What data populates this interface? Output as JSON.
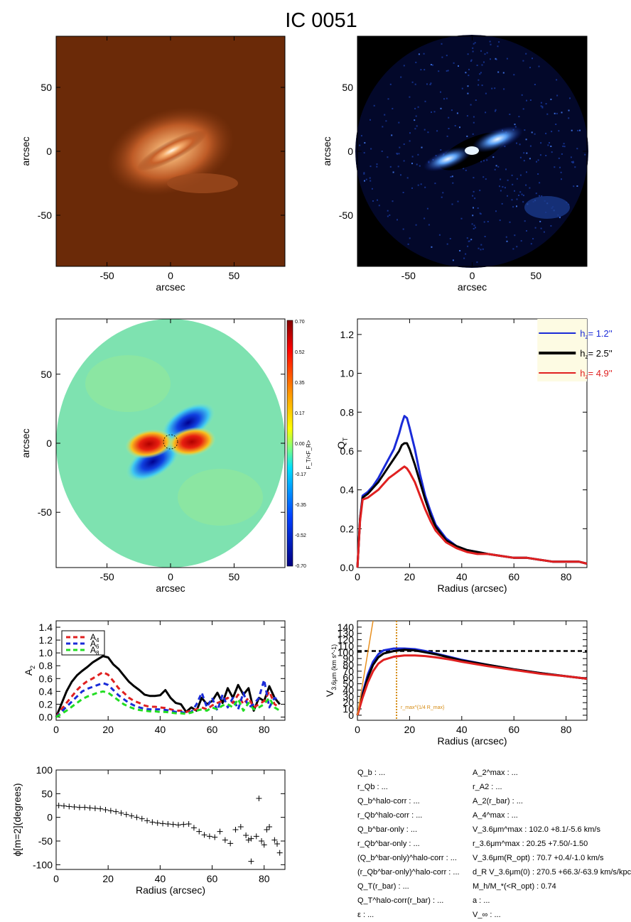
{
  "title": "IC 0051",
  "colorbar_label": "F_T/<F_R>",
  "panels": {
    "image1": {
      "xlabel": "arcsec",
      "ylabel": "arcsec",
      "xticks": [
        -50,
        0,
        50
      ],
      "yticks": [
        50,
        0,
        -50
      ]
    },
    "image2": {
      "xlabel": "arcsec",
      "ylabel": "arcsec",
      "xticks": [
        -50,
        0,
        50
      ],
      "yticks": [
        50,
        0,
        -50
      ]
    },
    "force_map": {
      "xlabel": "arcsec",
      "ylabel": "arcsec",
      "xticks": [
        -50,
        0,
        50
      ],
      "yticks": [
        50,
        0,
        -50
      ],
      "colorbar_ticks": [
        "0.70",
        "0.52",
        "0.35",
        "0.17",
        "0.00",
        "-0.17",
        "-0.35",
        "-0.52",
        "-0.70"
      ]
    }
  },
  "chart_data": [
    {
      "id": "qt",
      "type": "line",
      "xlabel": "Radius (arcsec)",
      "ylabel": "Q_T",
      "xlim": [
        0,
        88
      ],
      "ylim": [
        0,
        1.28
      ],
      "xticks": [
        0,
        20,
        40,
        60,
        80
      ],
      "yticks": [
        0.0,
        0.2,
        0.4,
        0.6,
        0.8,
        1.0,
        1.2
      ],
      "legend": {
        "position": "top-right",
        "background": "#fdfbe3",
        "entries": [
          {
            "label": "h_z=  1.2''",
            "color": "#1a2bd8"
          },
          {
            "label": "h_z=  2.5''",
            "color": "#000000"
          },
          {
            "label": "h_z=  4.9''",
            "color": "#e02020"
          }
        ]
      },
      "series": [
        {
          "name": "h_z= 1.2''",
          "color": "#1a2bd8",
          "x": [
            0,
            1,
            2,
            4,
            6,
            8,
            10,
            12,
            14,
            16,
            17,
            18,
            19,
            20,
            22,
            24,
            26,
            28,
            30,
            34,
            38,
            42,
            46,
            50,
            55,
            60,
            65,
            70,
            75,
            80,
            85,
            88
          ],
          "y": [
            0,
            0.25,
            0.37,
            0.39,
            0.42,
            0.46,
            0.51,
            0.56,
            0.61,
            0.69,
            0.74,
            0.78,
            0.77,
            0.72,
            0.61,
            0.48,
            0.37,
            0.29,
            0.22,
            0.15,
            0.11,
            0.09,
            0.08,
            0.07,
            0.06,
            0.05,
            0.05,
            0.04,
            0.03,
            0.03,
            0.03,
            0.02
          ]
        },
        {
          "name": "h_z= 2.5''",
          "color": "#000000",
          "x": [
            0,
            1,
            2,
            4,
            6,
            8,
            10,
            12,
            14,
            16,
            17,
            18,
            19,
            20,
            22,
            24,
            26,
            28,
            30,
            34,
            38,
            42,
            46,
            50,
            55,
            60,
            65,
            70,
            75,
            80,
            85,
            88
          ],
          "y": [
            0,
            0.25,
            0.36,
            0.38,
            0.41,
            0.44,
            0.48,
            0.52,
            0.56,
            0.6,
            0.63,
            0.64,
            0.64,
            0.61,
            0.53,
            0.44,
            0.35,
            0.27,
            0.21,
            0.14,
            0.11,
            0.09,
            0.08,
            0.07,
            0.06,
            0.05,
            0.05,
            0.04,
            0.03,
            0.03,
            0.03,
            0.02
          ]
        },
        {
          "name": "h_z= 4.9''",
          "color": "#e02020",
          "x": [
            0,
            1,
            2,
            4,
            6,
            8,
            10,
            12,
            14,
            16,
            17,
            18,
            19,
            20,
            22,
            24,
            26,
            28,
            30,
            34,
            38,
            42,
            46,
            50,
            55,
            60,
            65,
            70,
            75,
            80,
            85,
            88
          ],
          "y": [
            0,
            0.24,
            0.35,
            0.36,
            0.38,
            0.4,
            0.43,
            0.46,
            0.48,
            0.5,
            0.51,
            0.52,
            0.51,
            0.49,
            0.44,
            0.37,
            0.3,
            0.24,
            0.19,
            0.13,
            0.1,
            0.08,
            0.07,
            0.07,
            0.06,
            0.05,
            0.05,
            0.04,
            0.03,
            0.03,
            0.03,
            0.02
          ]
        }
      ]
    },
    {
      "id": "am",
      "type": "line",
      "xlabel": "",
      "ylabel": "A_2",
      "xlim": [
        0,
        88
      ],
      "ylim": [
        -0.05,
        1.5
      ],
      "xticks": [
        0,
        20,
        40,
        60,
        80
      ],
      "yticks": [
        0.0,
        0.2,
        0.4,
        0.6,
        0.8,
        1.0,
        1.2,
        1.4
      ],
      "legend": {
        "position": "top-left",
        "entries": [
          {
            "label": "A_4",
            "color": "#e02020"
          },
          {
            "label": "A_6",
            "color": "#1a2bd8"
          },
          {
            "label": "A_8",
            "color": "#22dd22"
          }
        ]
      },
      "series": [
        {
          "name": "A_2",
          "color": "#000000",
          "dash": false,
          "x": [
            0,
            2,
            4,
            6,
            8,
            10,
            12,
            14,
            16,
            18,
            20,
            22,
            24,
            26,
            28,
            30,
            32,
            34,
            36,
            38,
            40,
            42,
            44,
            46,
            48,
            50,
            52,
            54,
            56,
            58,
            60,
            62,
            64,
            66,
            68,
            70,
            72,
            74,
            76,
            78,
            80,
            82,
            84,
            86
          ],
          "y": [
            0.0,
            0.2,
            0.4,
            0.55,
            0.65,
            0.72,
            0.78,
            0.85,
            0.9,
            0.95,
            0.93,
            0.82,
            0.75,
            0.65,
            0.55,
            0.48,
            0.42,
            0.35,
            0.33,
            0.33,
            0.34,
            0.42,
            0.3,
            0.22,
            0.2,
            0.08,
            0.15,
            0.1,
            0.3,
            0.2,
            0.25,
            0.38,
            0.22,
            0.45,
            0.3,
            0.5,
            0.35,
            0.45,
            0.1,
            0.3,
            0.25,
            0.48,
            0.3,
            0.2
          ]
        },
        {
          "name": "A_4",
          "color": "#e02020",
          "dash": true,
          "x": [
            0,
            2,
            4,
            6,
            8,
            10,
            12,
            14,
            16,
            18,
            20,
            22,
            24,
            26,
            28,
            30,
            32,
            34,
            36,
            38,
            40,
            42,
            44,
            46,
            48,
            50,
            52,
            54,
            56,
            58,
            60,
            62,
            64,
            66,
            68,
            70,
            72,
            74,
            76,
            78,
            80,
            82,
            84,
            86
          ],
          "y": [
            0.0,
            0.12,
            0.22,
            0.32,
            0.42,
            0.5,
            0.56,
            0.6,
            0.65,
            0.7,
            0.66,
            0.56,
            0.45,
            0.38,
            0.3,
            0.25,
            0.22,
            0.18,
            0.16,
            0.16,
            0.15,
            0.14,
            0.12,
            0.1,
            0.1,
            0.08,
            0.1,
            0.12,
            0.15,
            0.12,
            0.18,
            0.22,
            0.25,
            0.3,
            0.22,
            0.35,
            0.2,
            0.3,
            0.15,
            0.2,
            0.25,
            0.4,
            0.2,
            0.15
          ]
        },
        {
          "name": "A_6",
          "color": "#1a2bd8",
          "dash": true,
          "x": [
            0,
            2,
            4,
            6,
            8,
            10,
            12,
            14,
            16,
            18,
            20,
            22,
            24,
            26,
            28,
            30,
            32,
            34,
            36,
            38,
            40,
            42,
            44,
            46,
            48,
            50,
            52,
            54,
            56,
            58,
            60,
            62,
            64,
            66,
            68,
            70,
            72,
            74,
            76,
            78,
            80,
            82,
            84,
            86
          ],
          "y": [
            0.0,
            0.08,
            0.16,
            0.24,
            0.32,
            0.4,
            0.44,
            0.47,
            0.5,
            0.53,
            0.5,
            0.42,
            0.34,
            0.28,
            0.22,
            0.18,
            0.15,
            0.13,
            0.12,
            0.12,
            0.12,
            0.11,
            0.1,
            0.08,
            0.08,
            0.06,
            0.08,
            0.2,
            0.38,
            0.15,
            0.3,
            0.1,
            0.35,
            0.15,
            0.3,
            0.12,
            0.38,
            0.15,
            0.2,
            0.3,
            0.58,
            0.15,
            0.3,
            0.25
          ]
        },
        {
          "name": "A_8",
          "color": "#22dd22",
          "dash": true,
          "x": [
            0,
            2,
            4,
            6,
            8,
            10,
            12,
            14,
            16,
            18,
            20,
            22,
            24,
            26,
            28,
            30,
            32,
            34,
            36,
            38,
            40,
            42,
            44,
            46,
            48,
            50,
            52,
            54,
            56,
            58,
            60,
            62,
            64,
            66,
            68,
            70,
            72,
            74,
            76,
            78,
            80,
            82,
            84,
            86
          ],
          "y": [
            0.0,
            0.05,
            0.1,
            0.16,
            0.22,
            0.28,
            0.32,
            0.35,
            0.38,
            0.4,
            0.38,
            0.32,
            0.26,
            0.2,
            0.16,
            0.13,
            0.11,
            0.1,
            0.09,
            0.09,
            0.08,
            0.08,
            0.07,
            0.06,
            0.06,
            0.05,
            0.07,
            0.1,
            0.12,
            0.1,
            0.15,
            0.12,
            0.18,
            0.2,
            0.15,
            0.28,
            0.1,
            0.22,
            0.12,
            0.15,
            0.2,
            0.3,
            0.15,
            0.1
          ]
        }
      ]
    },
    {
      "id": "vc",
      "type": "line",
      "xlabel": "Radius (arcsec)",
      "ylabel": "V_3.6μm (km s^-1)",
      "xlim": [
        0,
        88
      ],
      "ylim": [
        -8,
        150
      ],
      "xticks": [
        0,
        20,
        40,
        60,
        80
      ],
      "yticks": [
        0,
        10,
        20,
        30,
        40,
        50,
        60,
        70,
        80,
        90,
        100,
        110,
        120,
        130,
        140
      ],
      "hline": 102,
      "vline": 15,
      "vline_label": "r_max^{1/4 R_max}",
      "series": [
        {
          "name": "h_z= 1.2''",
          "color": "#1a2bd8",
          "x": [
            0,
            2,
            4,
            6,
            8,
            10,
            14,
            18,
            22,
            26,
            30,
            35,
            40,
            50,
            60,
            70,
            80,
            88
          ],
          "y": [
            0,
            35,
            65,
            85,
            97,
            103,
            106,
            106,
            105,
            102,
            98,
            93,
            88,
            80,
            73,
            67,
            62,
            58
          ]
        },
        {
          "name": "h_z= 2.5''",
          "color": "#000000",
          "x": [
            0,
            2,
            4,
            6,
            8,
            10,
            14,
            18,
            22,
            26,
            30,
            35,
            40,
            50,
            60,
            70,
            80,
            88
          ],
          "y": [
            0,
            32,
            60,
            80,
            92,
            98,
            102,
            104,
            103,
            100,
            97,
            92,
            87,
            80,
            73,
            67,
            62,
            58
          ]
        },
        {
          "name": "h_z= 4.9''",
          "color": "#e02020",
          "x": [
            0,
            2,
            4,
            6,
            8,
            10,
            14,
            18,
            22,
            26,
            30,
            35,
            40,
            50,
            60,
            70,
            80,
            88
          ],
          "y": [
            0,
            28,
            52,
            70,
            82,
            88,
            93,
            95,
            95,
            94,
            92,
            89,
            85,
            78,
            72,
            66,
            62,
            58
          ]
        },
        {
          "name": "disk-slope",
          "color": "#e89020",
          "x": [
            0,
            6
          ],
          "y": [
            0,
            150
          ]
        }
      ]
    },
    {
      "id": "phase",
      "type": "scatter",
      "xlabel": "Radius (arcsec)",
      "ylabel": "ϕ[m=2](degrees)",
      "xlim": [
        0,
        88
      ],
      "ylim": [
        -110,
        100
      ],
      "xticks": [
        0,
        20,
        40,
        60,
        80
      ],
      "yticks": [
        100,
        50,
        0,
        -50,
        -100
      ],
      "marker": "+",
      "x": [
        1,
        3,
        5,
        7,
        9,
        11,
        13,
        15,
        17,
        19,
        21,
        23,
        25,
        27,
        29,
        31,
        33,
        35,
        37,
        39,
        41,
        43,
        45,
        47,
        49,
        51,
        53,
        55,
        57,
        59,
        61,
        63,
        65,
        67,
        69,
        71,
        73,
        74,
        75,
        77,
        78,
        79,
        80,
        81,
        82,
        84,
        85,
        86
      ],
      "y": [
        25,
        24,
        23,
        22,
        21,
        21,
        20,
        19,
        18,
        16,
        14,
        12,
        9,
        6,
        3,
        0,
        -3,
        -7,
        -10,
        -12,
        -13,
        -14,
        -15,
        -16,
        -15,
        -14,
        -22,
        -30,
        -37,
        -40,
        -42,
        -30,
        -48,
        -55,
        -26,
        -20,
        -38,
        -48,
        -45,
        -40,
        40,
        -50,
        -58,
        -26,
        -20,
        -48,
        -56,
        -75
      ]
    }
  ],
  "extra_points": {
    "phase_outlier": {
      "x": 75,
      "y": -93
    }
  },
  "params_left": [
    "Q_b : ...",
    "r_Qb : ...",
    "Q_b^halo-corr : ...",
    "r_Qb^halo-corr : ...",
    "Q_b^bar-only : ...",
    "r_Qb^bar-only : ...",
    "(Q_b^bar-only)^halo-corr : ...",
    "(r_Qb^bar-only)^halo-corr : ...",
    "Q_T(r_bar) : ...",
    "Q_T^halo-corr(r_bar) : ...",
    "ε : ..."
  ],
  "params_right": [
    "A_2^max : ...",
    "r_A2 : ...",
    "A_2(r_bar) : ...",
    "A_4^max : ...",
    "V_3.6μm^max :  102.0 +8.1/-5.6 km/s",
    "r_3.6μm^max :  20.25 +7.50/-1.50",
    "V_3.6μm(R_opt) :  70.7 +0.4/-1.0 km/s",
    "d_R V_3.6μm(0) :  270.5 +66.3/-63.9 km/s/kpc",
    "M_h/M_*(<R_opt) :  0.74",
    "a : ...",
    "V_∞ : ..."
  ]
}
